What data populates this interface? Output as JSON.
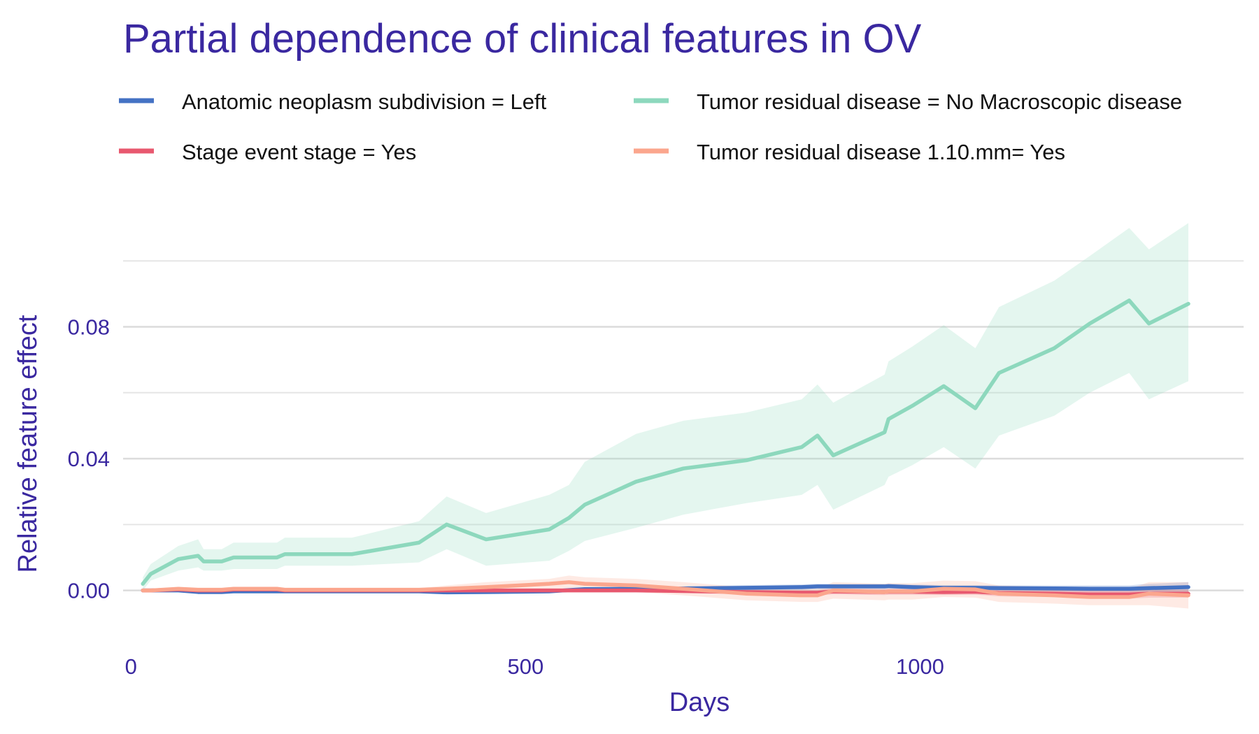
{
  "chart_data": {
    "type": "line",
    "title": "Partial dependence of clinical features in OV",
    "xlabel": "Days",
    "ylabel": "Relative feature effect",
    "xlim": [
      -10,
      1410
    ],
    "ylim": [
      -0.016,
      0.106
    ],
    "x_ticks": [
      0,
      500,
      1000
    ],
    "x_tick_labels": [
      "0",
      "500",
      "1000"
    ],
    "y_ticks": [
      0.0,
      0.04,
      0.08
    ],
    "y_tick_labels": [
      "0.00",
      "0.04",
      "0.08"
    ],
    "y_minor_ticks": [
      0.02,
      0.06,
      0.1
    ],
    "grid": true,
    "legend_position": "top",
    "x": [
      15,
      25,
      60,
      85,
      92,
      115,
      130,
      185,
      195,
      280,
      365,
      400,
      450,
      530,
      555,
      575,
      640,
      700,
      780,
      850,
      870,
      890,
      955,
      960,
      990,
      1030,
      1070,
      1100,
      1170,
      1215,
      1265,
      1290,
      1340
    ],
    "series": [
      {
        "name": "Anatomic neoplasm subdivision = Left",
        "color": "#4472c4",
        "values": [
          0.0,
          0.0,
          0.0,
          -0.0005,
          -0.0005,
          -0.0005,
          -0.0003,
          -0.0003,
          -0.0003,
          -0.0003,
          -0.0003,
          -0.0006,
          -0.0005,
          -0.0003,
          0.0001,
          0.0004,
          0.0005,
          0.0006,
          0.0008,
          0.001,
          0.0012,
          0.0012,
          0.0012,
          0.0013,
          0.001,
          0.0008,
          0.0008,
          0.0007,
          0.0006,
          0.0005,
          0.0005,
          0.0007,
          0.001
        ],
        "lower": [
          -0.0005,
          -0.0005,
          -0.0005,
          -0.001,
          -0.001,
          -0.001,
          -0.0008,
          -0.0008,
          -0.0008,
          -0.0008,
          -0.0008,
          -0.0011,
          -0.001,
          -0.0008,
          -0.0004,
          -0.0001,
          0.0,
          0.0,
          0.0,
          0.0002,
          0.0004,
          0.0004,
          0.0004,
          0.0005,
          0.0002,
          0.0,
          0.0,
          -0.0001,
          -0.0003,
          -0.0005,
          -0.0005,
          -0.0006,
          -0.0005
        ],
        "upper": [
          0.0005,
          0.0005,
          0.0005,
          0.0,
          0.0,
          0.0,
          0.0002,
          0.0002,
          0.0002,
          0.0002,
          0.0002,
          -0.0001,
          0.0,
          0.0002,
          0.0006,
          0.0009,
          0.001,
          0.0012,
          0.0016,
          0.0018,
          0.002,
          0.002,
          0.002,
          0.0021,
          0.0018,
          0.0016,
          0.0016,
          0.0015,
          0.0015,
          0.0015,
          0.0015,
          0.002,
          0.0025
        ]
      },
      {
        "name": "Stage event stage = Yes",
        "color": "#e8586f",
        "values": [
          0.0,
          0.0,
          0.0003,
          0.0,
          0.0,
          0.0,
          0.0003,
          0.0003,
          0.0,
          0.0,
          0.0,
          0.0,
          0.0,
          0.0,
          0.0,
          0.0,
          0.0,
          -0.0002,
          -0.0005,
          -0.0007,
          -0.0007,
          -0.0003,
          -0.0005,
          -0.0004,
          -0.0004,
          -0.0005,
          -0.0004,
          -0.0008,
          -0.001,
          -0.0012,
          -0.0012,
          -0.001,
          -0.001
        ],
        "lower": [
          -0.0004,
          -0.0004,
          -0.0001,
          -0.0004,
          -0.0004,
          -0.0004,
          -0.0001,
          -0.0001,
          -0.0004,
          -0.0004,
          -0.0004,
          -0.0004,
          -0.0004,
          -0.0004,
          -0.0004,
          -0.0004,
          -0.0004,
          -0.0008,
          -0.0012,
          -0.0015,
          -0.0015,
          -0.0012,
          -0.0014,
          -0.0013,
          -0.0013,
          -0.0014,
          -0.0013,
          -0.0018,
          -0.002,
          -0.0024,
          -0.0025,
          -0.0022,
          -0.0022
        ],
        "upper": [
          0.0004,
          0.0004,
          0.0007,
          0.0004,
          0.0004,
          0.0004,
          0.0007,
          0.0007,
          0.0004,
          0.0004,
          0.0004,
          0.0004,
          0.0004,
          0.0004,
          0.0004,
          0.0004,
          0.0004,
          0.0004,
          0.0002,
          0.0001,
          0.0001,
          0.0006,
          0.0004,
          0.0005,
          0.0005,
          0.0004,
          0.0005,
          0.0002,
          0.0,
          0.0,
          0.0001,
          0.0002,
          0.0002
        ]
      },
      {
        "name": "Tumor residual disease = No Macroscopic disease",
        "color": "#8dd8bd",
        "values": [
          0.002,
          0.005,
          0.0095,
          0.0105,
          0.0088,
          0.0088,
          0.01,
          0.01,
          0.011,
          0.011,
          0.0145,
          0.02,
          0.0155,
          0.0185,
          0.022,
          0.026,
          0.033,
          0.037,
          0.0395,
          0.0435,
          0.047,
          0.041,
          0.048,
          0.052,
          0.056,
          0.062,
          0.0553,
          0.066,
          0.0735,
          0.081,
          0.088,
          0.081,
          0.087
        ],
        "lower": [
          0.0,
          0.003,
          0.006,
          0.007,
          0.006,
          0.006,
          0.0065,
          0.0065,
          0.0075,
          0.0075,
          0.0085,
          0.0125,
          0.0075,
          0.009,
          0.012,
          0.015,
          0.019,
          0.023,
          0.0265,
          0.029,
          0.032,
          0.0245,
          0.032,
          0.0345,
          0.038,
          0.0435,
          0.037,
          0.047,
          0.053,
          0.06,
          0.066,
          0.058,
          0.0635
        ],
        "upper": [
          0.004,
          0.008,
          0.0135,
          0.0155,
          0.0125,
          0.0125,
          0.0145,
          0.0145,
          0.016,
          0.016,
          0.021,
          0.0285,
          0.0235,
          0.029,
          0.032,
          0.039,
          0.0475,
          0.0515,
          0.054,
          0.058,
          0.0625,
          0.057,
          0.0655,
          0.0695,
          0.074,
          0.0805,
          0.0735,
          0.086,
          0.094,
          0.1015,
          0.11,
          0.1035,
          0.1115
        ]
      },
      {
        "name": "Tumor residual disease 1.10.mm= Yes",
        "color": "#fba68d",
        "values": [
          0.0,
          0.0,
          0.0005,
          0.0002,
          0.0002,
          0.0002,
          0.0005,
          0.0005,
          0.0002,
          0.0002,
          0.0002,
          0.0005,
          0.001,
          0.002,
          0.0025,
          0.002,
          0.0015,
          0.0005,
          -0.001,
          -0.0015,
          -0.0015,
          0.0,
          -0.0005,
          -0.0003,
          -0.0003,
          0.0005,
          0.0003,
          -0.001,
          -0.0015,
          -0.002,
          -0.002,
          -0.001,
          -0.0015
        ],
        "lower": [
          -0.0005,
          -0.0005,
          0.0,
          -0.0003,
          -0.0003,
          -0.0003,
          0.0,
          0.0,
          -0.0003,
          -0.0003,
          -0.0003,
          -0.0005,
          -0.0005,
          0.0,
          0.0005,
          0.0,
          -0.0005,
          -0.0015,
          -0.003,
          -0.0035,
          -0.0035,
          -0.0025,
          -0.003,
          -0.0028,
          -0.0028,
          -0.002,
          -0.0022,
          -0.0035,
          -0.004,
          -0.0045,
          -0.0045,
          -0.0045,
          -0.0055
        ],
        "upper": [
          0.0005,
          0.0005,
          0.001,
          0.0007,
          0.0007,
          0.0007,
          0.001,
          0.001,
          0.0007,
          0.0007,
          0.0007,
          0.0015,
          0.0025,
          0.0035,
          0.0045,
          0.004,
          0.0035,
          0.0025,
          0.001,
          0.0005,
          0.0005,
          0.0025,
          0.002,
          0.0022,
          0.0022,
          0.003,
          0.0028,
          0.0015,
          0.001,
          0.0005,
          0.0005,
          0.0025,
          0.0025
        ]
      }
    ]
  }
}
